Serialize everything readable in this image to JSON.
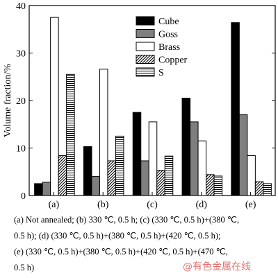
{
  "chart_data": {
    "type": "bar",
    "ylabel": "Volume fraction/%",
    "xlabel": "",
    "ylim": [
      0,
      40
    ],
    "yticks": [
      0,
      10,
      20,
      30,
      40
    ],
    "categories": [
      "(a)",
      "(b)",
      "(c)",
      "(d)",
      "(e)"
    ],
    "series": [
      {
        "name": "Cube",
        "pattern": "solid-black",
        "values": [
          2.5,
          10.3,
          17.5,
          20.5,
          36.4
        ]
      },
      {
        "name": "Goss",
        "pattern": "solid-gray",
        "values": [
          2.8,
          4.0,
          7.3,
          15.5,
          17.0
        ]
      },
      {
        "name": "Brass",
        "pattern": "white",
        "values": [
          37.5,
          26.6,
          15.5,
          11.5,
          8.4
        ]
      },
      {
        "name": "Copper",
        "pattern": "diagonal",
        "values": [
          8.4,
          7.3,
          5.3,
          4.4,
          2.9
        ]
      },
      {
        "name": "S",
        "pattern": "horizontal",
        "values": [
          25.5,
          12.5,
          8.3,
          4.1,
          2.5
        ]
      }
    ],
    "legend": "top-right",
    "grid": false,
    "colors": {
      "black": "#000000",
      "gray": "#7f7f7f",
      "white": "#ffffff"
    }
  },
  "caption": {
    "line1": "(a) Not annealed; (b) 330 ℃, 0.5 h; (c) (330 ℃, 0.5 h)+(380 ℃,",
    "line2": "0.5 h); (d) (330 ℃, 0.5 h)+(380 ℃, 0.5 h)+(420 ℃, 0.5 h);",
    "line3": "(e) (330 ℃, 0.5 h)+(380 ℃, 0.5 h)+(420 ℃, 0.5 h)+(470 ℃,",
    "line4": "0.5 h)"
  },
  "watermark": "@有色金属在线"
}
